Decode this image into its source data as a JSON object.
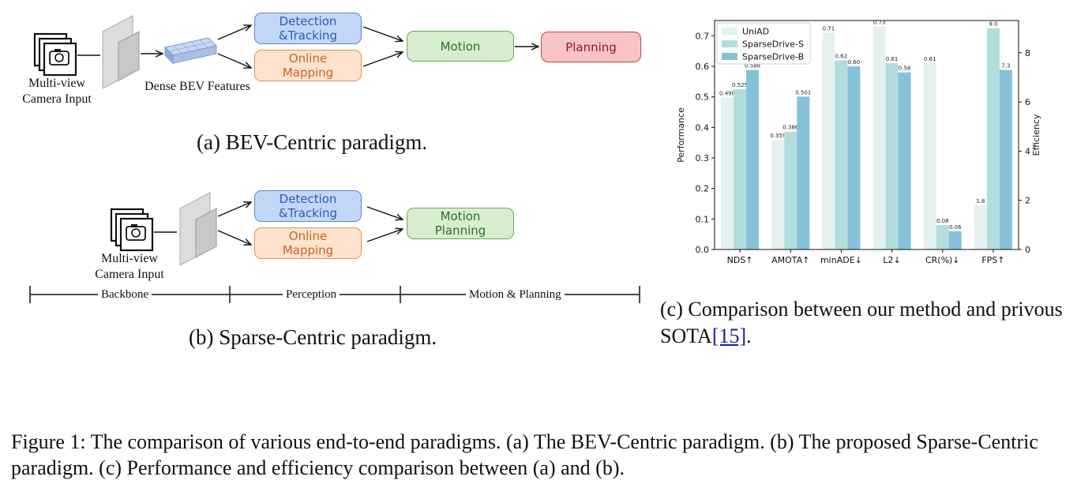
{
  "panel_a": {
    "camera_label": "Multi-view\nCamera Input",
    "bev_label": "Dense BEV Features",
    "detection": "Detection\n&Tracking",
    "mapping": "Online\nMapping",
    "motion": "Motion",
    "planning": "Planning",
    "caption": "(a) BEV-Centric paradigm."
  },
  "panel_b": {
    "camera_label": "Multi-view\nCamera Input",
    "detection": "Detection\n&Tracking",
    "mapping": "Online\nMapping",
    "motion_planning": "Motion\nPlanning",
    "stage_backbone": "Backbone",
    "stage_perception": "Perception",
    "stage_motion": "Motion & Planning",
    "caption": "(b) Sparse-Centric paradigm."
  },
  "panel_c": {
    "caption_pre": "(c) Comparison between our method and privous SOTA",
    "caption_ref": "[15]",
    "caption_post": "."
  },
  "chart_data": {
    "type": "bar",
    "categories": [
      "NDS↑",
      "AMOTA↑",
      "minADE↓",
      "L2↓",
      "CR(%)↓",
      "FPS↑"
    ],
    "ylabel": "Performance",
    "y2label": "Efficiency",
    "ylim": [
      0,
      0.75
    ],
    "y2lim": [
      0,
      9.31
    ],
    "yticks": [
      "0.0",
      "0.1",
      "0.2",
      "0.3",
      "0.4",
      "0.5",
      "0.6",
      "0.7"
    ],
    "y2ticks": [
      "0",
      "2",
      "4",
      "6",
      "8"
    ],
    "legend_position": "top-left",
    "series": [
      {
        "name": "UniAD",
        "color": "#e5f1f1",
        "values": [
          0.498,
          0.359,
          0.71,
          0.73,
          0.61,
          1.8
        ],
        "labels": [
          "0.498",
          "0.359",
          "0.71",
          "0.73",
          "0.61",
          "1.8"
        ]
      },
      {
        "name": "SparseDrive-S",
        "color": "#b1dedd",
        "values": [
          0.525,
          0.386,
          0.62,
          0.61,
          0.08,
          9.0
        ],
        "labels": [
          "0.525",
          "0.386",
          "0.62",
          "0.61",
          "0.08",
          "9.0"
        ]
      },
      {
        "name": "SparseDrive-B",
        "color": "#86c1d9",
        "values": [
          0.588,
          0.501,
          0.6,
          0.58,
          0.06,
          7.3
        ],
        "labels": [
          "0.588",
          "0.501",
          "0.60",
          "0.58",
          "0.06",
          "7.3"
        ]
      }
    ],
    "secondary_axis_categories": [
      "FPS↑"
    ]
  },
  "figure_caption": "Figure 1: The comparison of various end-to-end paradigms. (a) The BEV-Centric paradigm. (b) The proposed Sparse-Centric paradigm. (c) Performance and efficiency comparison between (a) and (b)."
}
